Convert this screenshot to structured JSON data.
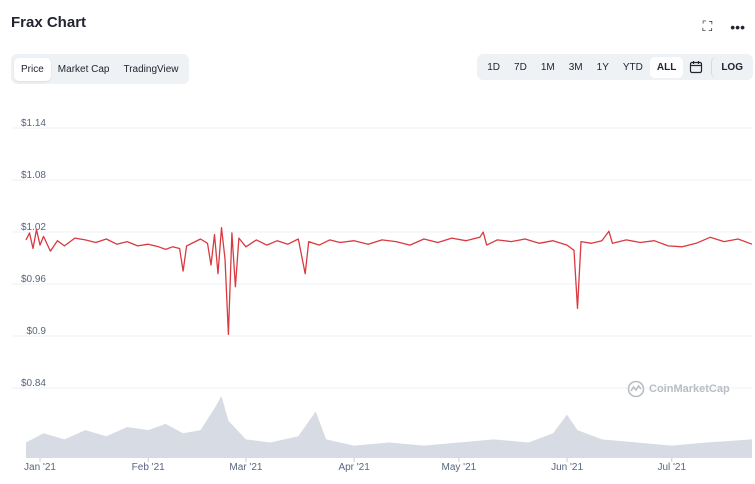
{
  "header": {
    "title": "Frax Chart",
    "expand_icon": "expand-icon",
    "more_icon": "more-icon"
  },
  "tabs": [
    {
      "label": "Price",
      "active": true
    },
    {
      "label": "Market Cap",
      "active": false
    },
    {
      "label": "TradingView",
      "active": false
    }
  ],
  "ranges": [
    {
      "label": "1D"
    },
    {
      "label": "7D"
    },
    {
      "label": "1M"
    },
    {
      "label": "3M"
    },
    {
      "label": "1Y"
    },
    {
      "label": "YTD"
    },
    {
      "label": "ALL",
      "active": true
    }
  ],
  "log_label": "LOG",
  "calendar_icon": "calendar-icon",
  "watermark": "CoinMarketCap",
  "colors": {
    "price_line": "#d93a40",
    "volume_fill": "#d7dbe4",
    "grid": "#eff2f5",
    "axis_text": "#58667e"
  },
  "chart_data": {
    "type": "line",
    "title": "Frax Chart",
    "ylim": [
      0.82,
      1.16
    ],
    "grid": true,
    "yticks": [
      {
        "value": 1.14,
        "label": "$1.14"
      },
      {
        "value": 1.08,
        "label": "$1.08"
      },
      {
        "value": 1.02,
        "label": "$1.02"
      },
      {
        "value": 0.96,
        "label": "$0.96"
      },
      {
        "value": 0.9,
        "label": "$0.9"
      },
      {
        "value": 0.84,
        "label": "$0.84"
      }
    ],
    "xticks": [
      "Jan '21",
      "Feb '21",
      "Mar '21",
      "Apr '21",
      "May '21",
      "Jun '21",
      "Jul '21"
    ],
    "xrange": [
      "2021-01-01",
      "2021-07-28"
    ],
    "series": [
      {
        "type": "price",
        "points": [
          [
            "2021-01-01",
            1.004
          ],
          [
            "2021-01-02",
            1.012
          ],
          [
            "2021-01-03",
            0.994
          ],
          [
            "2021-01-04",
            1.016
          ],
          [
            "2021-01-05",
            0.998
          ],
          [
            "2021-01-06",
            1.008
          ],
          [
            "2021-01-08",
            0.991
          ],
          [
            "2021-01-10",
            1.003
          ],
          [
            "2021-01-12",
            0.997
          ],
          [
            "2021-01-15",
            1.006
          ],
          [
            "2021-01-18",
            1.004
          ],
          [
            "2021-01-21",
            1.001
          ],
          [
            "2021-01-24",
            1.005
          ],
          [
            "2021-01-27",
            0.999
          ],
          [
            "2021-01-30",
            1.002
          ],
          [
            "2021-02-02",
            0.997
          ],
          [
            "2021-02-05",
            0.999
          ],
          [
            "2021-02-08",
            0.996
          ],
          [
            "2021-02-10",
            0.993
          ],
          [
            "2021-02-12",
            0.996
          ],
          [
            "2021-02-14",
            0.994
          ],
          [
            "2021-02-15",
            0.968
          ],
          [
            "2021-02-16",
            0.997
          ],
          [
            "2021-02-18",
            1.001
          ],
          [
            "2021-02-20",
            1.005
          ],
          [
            "2021-02-22",
            1.0
          ],
          [
            "2021-02-23",
            0.975
          ],
          [
            "2021-02-24",
            1.01
          ],
          [
            "2021-02-25",
            0.965
          ],
          [
            "2021-02-26",
            1.018
          ],
          [
            "2021-02-27",
            0.982
          ],
          [
            "2021-02-28",
            0.895
          ],
          [
            "2021-03-01",
            1.012
          ],
          [
            "2021-03-02",
            0.95
          ],
          [
            "2021-03-03",
            1.006
          ],
          [
            "2021-03-05",
            0.996
          ],
          [
            "2021-03-08",
            1.004
          ],
          [
            "2021-03-11",
            0.998
          ],
          [
            "2021-03-14",
            1.003
          ],
          [
            "2021-03-17",
            0.999
          ],
          [
            "2021-03-20",
            1.005
          ],
          [
            "2021-03-22",
            0.965
          ],
          [
            "2021-03-23",
            1.002
          ],
          [
            "2021-03-26",
            0.998
          ],
          [
            "2021-03-29",
            1.004
          ],
          [
            "2021-04-01",
            1.001
          ],
          [
            "2021-04-05",
            1.003
          ],
          [
            "2021-04-09",
            0.999
          ],
          [
            "2021-04-13",
            1.004
          ],
          [
            "2021-04-17",
            1.002
          ],
          [
            "2021-04-21",
            0.998
          ],
          [
            "2021-04-25",
            1.005
          ],
          [
            "2021-04-29",
            1.001
          ],
          [
            "2021-05-03",
            1.006
          ],
          [
            "2021-05-07",
            1.003
          ],
          [
            "2021-05-11",
            1.007
          ],
          [
            "2021-05-12",
            1.013
          ],
          [
            "2021-05-13",
            0.998
          ],
          [
            "2021-05-16",
            1.004
          ],
          [
            "2021-05-20",
            1.002
          ],
          [
            "2021-05-24",
            1.005
          ],
          [
            "2021-05-28",
            1.0
          ],
          [
            "2021-06-01",
            1.003
          ],
          [
            "2021-06-05",
            0.998
          ],
          [
            "2021-06-07",
            0.992
          ],
          [
            "2021-06-08",
            0.925
          ],
          [
            "2021-06-09",
            1.002
          ],
          [
            "2021-06-12",
            1.0
          ],
          [
            "2021-06-15",
            1.003
          ],
          [
            "2021-06-17",
            1.014
          ],
          [
            "2021-06-18",
            1.0
          ],
          [
            "2021-06-22",
            1.004
          ],
          [
            "2021-06-26",
            1.001
          ],
          [
            "2021-06-30",
            1.003
          ],
          [
            "2021-07-04",
            0.997
          ],
          [
            "2021-07-08",
            0.996
          ],
          [
            "2021-07-12",
            1.0
          ],
          [
            "2021-07-16",
            1.007
          ],
          [
            "2021-07-20",
            1.002
          ],
          [
            "2021-07-24",
            1.005
          ],
          [
            "2021-07-28",
            0.999
          ]
        ]
      },
      {
        "type": "volume",
        "relative_levels": [
          [
            "2021-01-01",
            0.25
          ],
          [
            "2021-01-06",
            0.4
          ],
          [
            "2021-01-12",
            0.3
          ],
          [
            "2021-01-18",
            0.45
          ],
          [
            "2021-01-24",
            0.35
          ],
          [
            "2021-01-30",
            0.5
          ],
          [
            "2021-02-05",
            0.45
          ],
          [
            "2021-02-10",
            0.55
          ],
          [
            "2021-02-15",
            0.4
          ],
          [
            "2021-02-20",
            0.45
          ],
          [
            "2021-02-24",
            0.8
          ],
          [
            "2021-02-26",
            1.0
          ],
          [
            "2021-02-28",
            0.6
          ],
          [
            "2021-03-05",
            0.3
          ],
          [
            "2021-03-12",
            0.25
          ],
          [
            "2021-03-20",
            0.35
          ],
          [
            "2021-03-25",
            0.75
          ],
          [
            "2021-03-28",
            0.3
          ],
          [
            "2021-04-05",
            0.2
          ],
          [
            "2021-04-15",
            0.25
          ],
          [
            "2021-04-25",
            0.2
          ],
          [
            "2021-05-05",
            0.25
          ],
          [
            "2021-05-15",
            0.3
          ],
          [
            "2021-05-25",
            0.25
          ],
          [
            "2021-06-01",
            0.4
          ],
          [
            "2021-06-05",
            0.7
          ],
          [
            "2021-06-08",
            0.45
          ],
          [
            "2021-06-15",
            0.3
          ],
          [
            "2021-06-25",
            0.25
          ],
          [
            "2021-07-05",
            0.2
          ],
          [
            "2021-07-15",
            0.25
          ],
          [
            "2021-07-28",
            0.3
          ]
        ]
      }
    ]
  }
}
